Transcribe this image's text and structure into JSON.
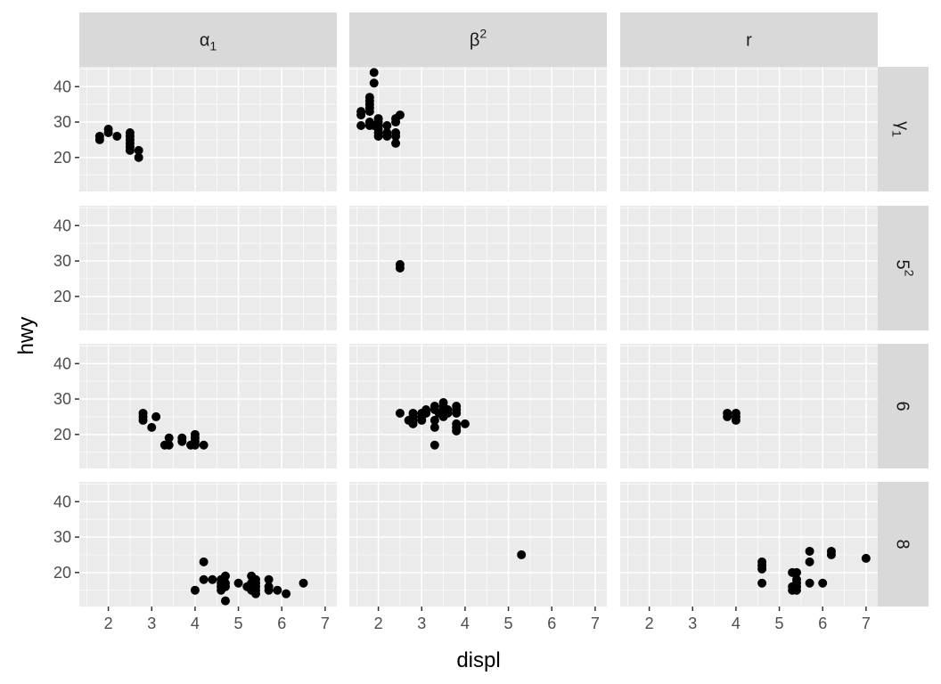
{
  "chart_data": {
    "type": "scatter",
    "xlabel": "displ",
    "ylabel": "hwy",
    "xlim": [
      1.33,
      7.27
    ],
    "ylim": [
      10.4,
      45.6
    ],
    "x_ticks": [
      2,
      3,
      4,
      5,
      6,
      7
    ],
    "y_ticks": [
      20,
      30,
      40
    ],
    "grid": true,
    "facet_cols": [
      {
        "base": "α",
        "sub": "1",
        "sup": ""
      },
      {
        "base": "β",
        "sub": "",
        "sup": "2"
      },
      {
        "base": "r",
        "sub": "",
        "sup": ""
      }
    ],
    "facet_rows": [
      {
        "base": "γ",
        "sub": "1",
        "sup": ""
      },
      {
        "base": "5",
        "sub": "",
        "sup": "2"
      },
      {
        "base": "6",
        "sub": "",
        "sup": ""
      },
      {
        "base": "8",
        "sub": "",
        "sup": ""
      }
    ],
    "panels": [
      {
        "row": 0,
        "col": 0,
        "points": [
          [
            1.8,
            25
          ],
          [
            1.8,
            26
          ],
          [
            2.0,
            27
          ],
          [
            2.0,
            28
          ],
          [
            2.2,
            26
          ],
          [
            2.5,
            22
          ],
          [
            2.5,
            23
          ],
          [
            2.5,
            24
          ],
          [
            2.5,
            25
          ],
          [
            2.5,
            26
          ],
          [
            2.5,
            27
          ],
          [
            2.7,
            20
          ],
          [
            2.7,
            22
          ]
        ]
      },
      {
        "row": 0,
        "col": 1,
        "points": [
          [
            1.6,
            29
          ],
          [
            1.6,
            32
          ],
          [
            1.6,
            33
          ],
          [
            1.8,
            29
          ],
          [
            1.8,
            30
          ],
          [
            1.8,
            33
          ],
          [
            1.8,
            34
          ],
          [
            1.8,
            35
          ],
          [
            1.8,
            36
          ],
          [
            1.8,
            37
          ],
          [
            1.9,
            29
          ],
          [
            1.9,
            41
          ],
          [
            1.9,
            44
          ],
          [
            2.0,
            26
          ],
          [
            2.0,
            27
          ],
          [
            2.0,
            28
          ],
          [
            2.0,
            29
          ],
          [
            2.0,
            30
          ],
          [
            2.0,
            31
          ],
          [
            2.2,
            26
          ],
          [
            2.2,
            27
          ],
          [
            2.2,
            29
          ],
          [
            2.4,
            24
          ],
          [
            2.4,
            26
          ],
          [
            2.4,
            27
          ],
          [
            2.4,
            30
          ],
          [
            2.4,
            31
          ],
          [
            2.5,
            32
          ]
        ]
      },
      {
        "row": 0,
        "col": 2,
        "points": []
      },
      {
        "row": 1,
        "col": 0,
        "points": []
      },
      {
        "row": 1,
        "col": 1,
        "points": [
          [
            2.5,
            28
          ],
          [
            2.5,
            29
          ]
        ]
      },
      {
        "row": 1,
        "col": 2,
        "points": []
      },
      {
        "row": 2,
        "col": 0,
        "points": [
          [
            2.8,
            24
          ],
          [
            2.8,
            25
          ],
          [
            2.8,
            26
          ],
          [
            3.0,
            22
          ],
          [
            3.1,
            25
          ],
          [
            3.3,
            17
          ],
          [
            3.4,
            17
          ],
          [
            3.4,
            19
          ],
          [
            3.7,
            18
          ],
          [
            3.7,
            19
          ],
          [
            3.9,
            17
          ],
          [
            4.0,
            17
          ],
          [
            4.0,
            18
          ],
          [
            4.0,
            19
          ],
          [
            4.0,
            20
          ],
          [
            4.2,
            17
          ]
        ]
      },
      {
        "row": 2,
        "col": 1,
        "points": [
          [
            2.5,
            26
          ],
          [
            2.7,
            24
          ],
          [
            2.8,
            23
          ],
          [
            2.8,
            24
          ],
          [
            2.8,
            25
          ],
          [
            2.8,
            26
          ],
          [
            3.0,
            24
          ],
          [
            3.0,
            25
          ],
          [
            3.0,
            26
          ],
          [
            3.1,
            26
          ],
          [
            3.1,
            27
          ],
          [
            3.3,
            17
          ],
          [
            3.3,
            22
          ],
          [
            3.3,
            24
          ],
          [
            3.3,
            27
          ],
          [
            3.3,
            28
          ],
          [
            3.4,
            26
          ],
          [
            3.5,
            25
          ],
          [
            3.5,
            26
          ],
          [
            3.5,
            27
          ],
          [
            3.5,
            28
          ],
          [
            3.5,
            29
          ],
          [
            3.6,
            26
          ],
          [
            3.6,
            27
          ],
          [
            3.8,
            21
          ],
          [
            3.8,
            22
          ],
          [
            3.8,
            23
          ],
          [
            3.8,
            26
          ],
          [
            3.8,
            27
          ],
          [
            3.8,
            28
          ],
          [
            4.0,
            23
          ]
        ]
      },
      {
        "row": 2,
        "col": 2,
        "points": [
          [
            3.8,
            25
          ],
          [
            3.8,
            26
          ],
          [
            4.0,
            24
          ],
          [
            4.0,
            25
          ],
          [
            4.0,
            26
          ]
        ]
      },
      {
        "row": 3,
        "col": 0,
        "points": [
          [
            4.0,
            15
          ],
          [
            4.2,
            18
          ],
          [
            4.2,
            23
          ],
          [
            4.4,
            18
          ],
          [
            4.6,
            15
          ],
          [
            4.6,
            16
          ],
          [
            4.6,
            17
          ],
          [
            4.6,
            18
          ],
          [
            4.7,
            12
          ],
          [
            4.7,
            16
          ],
          [
            4.7,
            17
          ],
          [
            4.7,
            19
          ],
          [
            5.0,
            17
          ],
          [
            5.2,
            16
          ],
          [
            5.3,
            15
          ],
          [
            5.3,
            16
          ],
          [
            5.3,
            17
          ],
          [
            5.3,
            19
          ],
          [
            5.4,
            14
          ],
          [
            5.4,
            15
          ],
          [
            5.4,
            16
          ],
          [
            5.4,
            17
          ],
          [
            5.4,
            18
          ],
          [
            5.7,
            15
          ],
          [
            5.7,
            16
          ],
          [
            5.7,
            18
          ],
          [
            5.9,
            15
          ],
          [
            6.1,
            14
          ],
          [
            6.5,
            17
          ]
        ]
      },
      {
        "row": 3,
        "col": 1,
        "points": [
          [
            5.3,
            25
          ]
        ]
      },
      {
        "row": 3,
        "col": 2,
        "points": [
          [
            4.6,
            17
          ],
          [
            4.6,
            21
          ],
          [
            4.6,
            22
          ],
          [
            4.6,
            23
          ],
          [
            5.3,
            15
          ],
          [
            5.3,
            16
          ],
          [
            5.3,
            20
          ],
          [
            5.4,
            15
          ],
          [
            5.4,
            16
          ],
          [
            5.4,
            17
          ],
          [
            5.4,
            18
          ],
          [
            5.4,
            20
          ],
          [
            5.7,
            17
          ],
          [
            5.7,
            23
          ],
          [
            5.7,
            26
          ],
          [
            6.0,
            17
          ],
          [
            6.2,
            25
          ],
          [
            6.2,
            26
          ],
          [
            7.0,
            24
          ]
        ]
      }
    ]
  }
}
